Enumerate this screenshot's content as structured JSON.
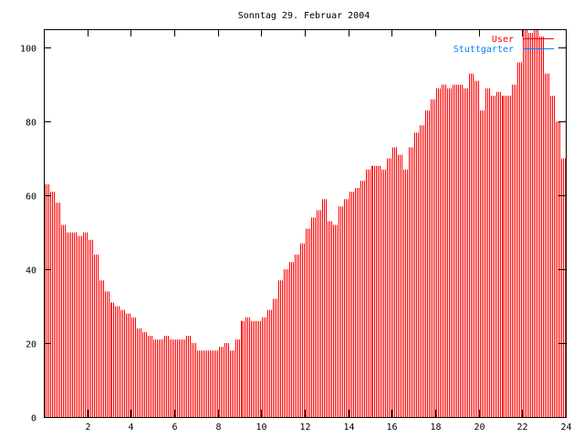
{
  "chart_data": {
    "type": "bar",
    "title": "Sonntag 29. Februar 2004",
    "xlabel": "",
    "ylabel": "",
    "xlim": [
      0,
      24
    ],
    "ylim": [
      0,
      105
    ],
    "x_step_hours": 0.25,
    "x_ticks": [
      "2",
      "4",
      "6",
      "8",
      "10",
      "12",
      "14",
      "16",
      "18",
      "20",
      "22",
      "24"
    ],
    "y_ticks": [
      "0",
      "20",
      "40",
      "60",
      "80",
      "100"
    ],
    "legend_position": "top-right",
    "series": [
      {
        "name": "User",
        "color": "#ff0000",
        "values": [
          63,
          61,
          58,
          52,
          50,
          50,
          49,
          50,
          48,
          44,
          37,
          34,
          31,
          30,
          29,
          28,
          27,
          24,
          23,
          22,
          21,
          21,
          22,
          21,
          21,
          21,
          22,
          20,
          18,
          18,
          18,
          18,
          19,
          20,
          18,
          21,
          26,
          27,
          26,
          26,
          27,
          29,
          32,
          37,
          40,
          42,
          44,
          47,
          51,
          54,
          56,
          59,
          53,
          52,
          57,
          59,
          61,
          62,
          64,
          67,
          68,
          68,
          67,
          70,
          73,
          71,
          67,
          73,
          77,
          79,
          83,
          86,
          89,
          90,
          89,
          90,
          90,
          89,
          93,
          91,
          83,
          89,
          87,
          88,
          87,
          87,
          90,
          96,
          105,
          104,
          105,
          103,
          93,
          87,
          80,
          70
        ]
      },
      {
        "name": "Stuttgarter",
        "color": "#0080ff",
        "values": []
      }
    ]
  }
}
